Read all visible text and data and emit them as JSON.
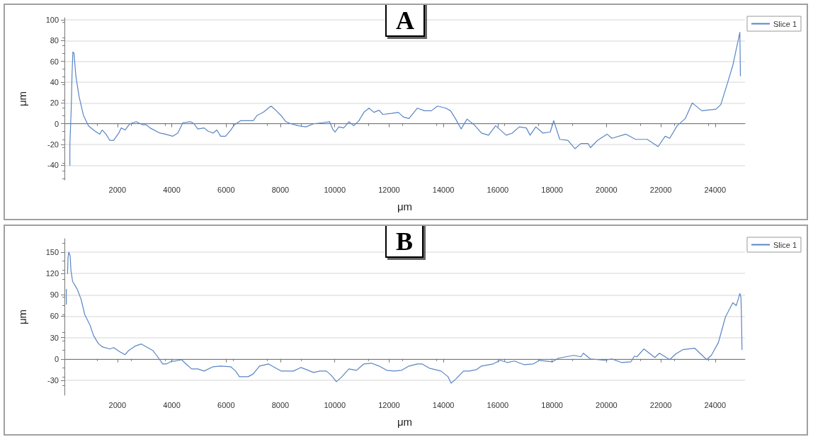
{
  "chart_data": [
    {
      "type": "line",
      "title": "A",
      "xlabel": "μm",
      "ylabel": "μm",
      "legend": "top right",
      "grid": "y",
      "marker": "none",
      "line_style": "solid",
      "xlim": [
        50,
        25100
      ],
      "xticks": [
        2000,
        4000,
        6000,
        8000,
        10000,
        12000,
        14000,
        16000,
        18000,
        20000,
        22000,
        24000
      ],
      "ylim": [
        -54,
        102
      ],
      "yticks": [
        -40,
        -20,
        0,
        20,
        40,
        60,
        80,
        100
      ],
      "series": [
        {
          "name": "Slice 1",
          "color": "#5a85c5",
          "x": [
            250,
            250,
            300,
            330,
            360,
            400,
            470,
            590,
            750,
            935,
            1170,
            1350,
            1440,
            1580,
            1720,
            1860,
            2050,
            2140,
            2280,
            2460,
            2690,
            2930,
            3060,
            3200,
            3570,
            3760,
            4040,
            4220,
            4410,
            4690,
            4820,
            4960,
            5190,
            5330,
            5520,
            5660,
            5800,
            5980,
            6170,
            6310,
            6540,
            6770,
            7000,
            7140,
            7370,
            7650,
            7790,
            8020,
            8200,
            8390,
            8670,
            8940,
            9220,
            9550,
            9810,
            9920,
            10010,
            10150,
            10330,
            10520,
            10700,
            10890,
            11070,
            11260,
            11440,
            11630,
            11770,
            12080,
            12340,
            12520,
            12730,
            13040,
            13300,
            13560,
            13780,
            14090,
            14260,
            14440,
            14650,
            14870,
            15130,
            15400,
            15660,
            15920,
            16310,
            16530,
            16790,
            17050,
            17190,
            17400,
            17660,
            17930,
            18060,
            18280,
            18580,
            18840,
            19060,
            19320,
            19410,
            19670,
            20020,
            20200,
            20720,
            21070,
            21500,
            21900,
            22160,
            22330,
            22600,
            22900,
            23160,
            23510,
            24030,
            24210,
            24430,
            24650,
            24910,
            24930
          ],
          "values": [
            -40,
            -20,
            15,
            48,
            69,
            68,
            46,
            26,
            8,
            -2,
            -7,
            -10,
            -6,
            -10,
            -16,
            -16,
            -9,
            -4,
            -6,
            0,
            2,
            -1,
            -1,
            -4,
            -9,
            -10,
            -12,
            -9,
            1,
            2,
            0,
            -5,
            -4,
            -7,
            -9,
            -6,
            -12,
            -12,
            -6,
            -1,
            3,
            3,
            3,
            8,
            11,
            17,
            14,
            8,
            2,
            0,
            -2,
            -3,
            0,
            1,
            2,
            -5,
            -8,
            -3,
            -4,
            2,
            -2,
            3,
            11,
            15,
            11,
            13,
            9,
            10,
            11,
            6.5,
            5,
            15,
            12.5,
            12.5,
            17,
            15,
            12.5,
            5,
            -5,
            4.5,
            -1,
            -9,
            -11,
            -2,
            -11,
            -9,
            -3,
            -4,
            -11,
            -3,
            -9,
            -8,
            3,
            -15,
            -16,
            -24,
            -19,
            -19,
            -23,
            -16,
            -10,
            -14,
            -10,
            -15,
            -15,
            -22,
            -12,
            -14,
            -2,
            5,
            20,
            12.5,
            14,
            18.5,
            37,
            56,
            88,
            46
          ]
        }
      ]
    },
    {
      "type": "line",
      "title": "B",
      "xlabel": "μm",
      "ylabel": "μm",
      "legend": "top right",
      "grid": "y",
      "marker": "none",
      "line_style": "solid",
      "xlim": [
        50,
        25100
      ],
      "xticks": [
        2000,
        4000,
        6000,
        8000,
        10000,
        12000,
        14000,
        16000,
        18000,
        20000,
        22000,
        24000
      ],
      "ylim": [
        -51,
        169
      ],
      "yticks": [
        -30,
        0,
        30,
        60,
        90,
        120,
        150
      ],
      "series": [
        {
          "name": "Slice 1",
          "color": "#5a85c5",
          "x": [
            120,
            120,
            140,
            165,
            180,
            210,
            260,
            290,
            350,
            520,
            660,
            800,
            985,
            1120,
            1290,
            1440,
            1720,
            1860,
            2090,
            2280,
            2420,
            2650,
            2880,
            3110,
            3300,
            3480,
            3670,
            3810,
            4000,
            4130,
            4360,
            4550,
            4730,
            4960,
            5190,
            5520,
            5800,
            6170,
            6350,
            6490,
            6810,
            7000,
            7230,
            7560,
            7690,
            8020,
            8480,
            8760,
            9220,
            9450,
            9690,
            9870,
            10060,
            10240,
            10520,
            10800,
            11070,
            11350,
            11630,
            11910,
            12190,
            12460,
            12730,
            13040,
            13210,
            13480,
            13910,
            14170,
            14280,
            14440,
            14740,
            14960,
            15220,
            15400,
            15830,
            16090,
            16350,
            16610,
            16960,
            17310,
            17540,
            18010,
            18230,
            18800,
            19060,
            19150,
            19410,
            19940,
            20200,
            20550,
            20900,
            21030,
            21120,
            21380,
            21780,
            21950,
            22330,
            22550,
            22810,
            23250,
            23470,
            23690,
            23860,
            24120,
            24380,
            24650,
            24780,
            24910,
            24950,
            24970,
            24990
          ],
          "values": [
            77,
            98,
            null,
            120,
            142,
            150,
            145,
            124,
            109,
            98,
            84,
            62,
            48,
            33,
            22,
            17,
            14,
            16,
            10,
            6,
            12,
            18,
            21,
            16,
            12,
            3,
            -7,
            -7,
            -3,
            -3,
            -1,
            -8,
            -14,
            -14,
            -17,
            -11,
            -10,
            -11,
            -17,
            -25,
            -25,
            -21,
            -10,
            -7,
            -10,
            -17,
            -17,
            -12,
            -19,
            -17,
            -17,
            -23,
            -32,
            -26,
            -14,
            -16,
            -7,
            -6,
            -10,
            -16,
            -17,
            -16,
            -10,
            -7,
            -7,
            -13,
            -17,
            -25,
            -34,
            -29,
            -17,
            -17,
            -15,
            -10,
            -7,
            -2,
            -5,
            -3,
            -8,
            -7,
            -2,
            -4,
            1,
            5,
            3,
            8,
            0,
            -2,
            0,
            -5,
            -4,
            4,
            3,
            14,
            2,
            8,
            -1,
            7,
            13,
            15,
            7,
            -1,
            5,
            23,
            59,
            79,
            75,
            92,
            87,
            59,
            13
          ]
        }
      ]
    }
  ]
}
